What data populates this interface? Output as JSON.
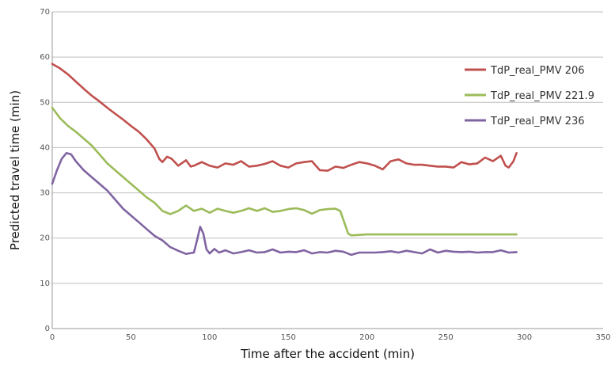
{
  "chart_data": {
    "type": "line",
    "xlabel": "Time after the accident (min)",
    "ylabel": "Predicted travel time (min)",
    "xlim": [
      0,
      350
    ],
    "ylim": [
      0,
      70
    ],
    "x_ticks": [
      "0",
      "50",
      "100",
      "150",
      "200",
      "250",
      "300",
      "350"
    ],
    "y_ticks": [
      "0",
      "10",
      "20",
      "30",
      "40",
      "50",
      "60",
      "70"
    ],
    "grid": "horizontal",
    "legend_position": "right",
    "series": [
      {
        "name": "TdP_real_PMV 206",
        "color": "#c0504d",
        "points": [
          [
            0,
            58.5
          ],
          [
            5,
            57.5
          ],
          [
            10,
            56.2
          ],
          [
            15,
            54.6
          ],
          [
            20,
            53
          ],
          [
            25,
            51.5
          ],
          [
            30,
            50.2
          ],
          [
            35,
            48.8
          ],
          [
            40,
            47.5
          ],
          [
            45,
            46.2
          ],
          [
            50,
            44.8
          ],
          [
            55,
            43.5
          ],
          [
            60,
            41.8
          ],
          [
            65,
            39.8
          ],
          [
            68,
            37.5
          ],
          [
            70,
            36.8
          ],
          [
            73,
            38
          ],
          [
            76,
            37.5
          ],
          [
            80,
            36
          ],
          [
            85,
            37.2
          ],
          [
            88,
            35.8
          ],
          [
            90,
            36
          ],
          [
            95,
            36.8
          ],
          [
            100,
            36
          ],
          [
            105,
            35.6
          ],
          [
            110,
            36.5
          ],
          [
            115,
            36.2
          ],
          [
            120,
            37
          ],
          [
            125,
            35.8
          ],
          [
            130,
            36
          ],
          [
            135,
            36.4
          ],
          [
            140,
            37
          ],
          [
            145,
            36
          ],
          [
            150,
            35.6
          ],
          [
            155,
            36.5
          ],
          [
            160,
            36.8
          ],
          [
            165,
            37
          ],
          [
            170,
            35
          ],
          [
            175,
            34.9
          ],
          [
            180,
            35.8
          ],
          [
            185,
            35.5
          ],
          [
            190,
            36.2
          ],
          [
            195,
            36.8
          ],
          [
            200,
            36.5
          ],
          [
            205,
            36
          ],
          [
            210,
            35.2
          ],
          [
            215,
            37
          ],
          [
            220,
            37.4
          ],
          [
            225,
            36.5
          ],
          [
            230,
            36.2
          ],
          [
            235,
            36.2
          ],
          [
            240,
            36
          ],
          [
            245,
            35.8
          ],
          [
            250,
            35.8
          ],
          [
            255,
            35.6
          ],
          [
            260,
            36.8
          ],
          [
            265,
            36.3
          ],
          [
            270,
            36.5
          ],
          [
            275,
            37.8
          ],
          [
            280,
            37
          ],
          [
            285,
            38.2
          ],
          [
            288,
            36
          ],
          [
            290,
            35.6
          ],
          [
            293,
            37
          ],
          [
            295,
            38.8
          ]
        ]
      },
      {
        "name": "TdP_real_PMV 221.9",
        "color": "#9bbb59",
        "points": [
          [
            0,
            48.8
          ],
          [
            5,
            46.5
          ],
          [
            10,
            44.8
          ],
          [
            15,
            43.5
          ],
          [
            20,
            42
          ],
          [
            25,
            40.5
          ],
          [
            30,
            38.5
          ],
          [
            35,
            36.5
          ],
          [
            40,
            35
          ],
          [
            45,
            33.5
          ],
          [
            50,
            32
          ],
          [
            55,
            30.5
          ],
          [
            60,
            29
          ],
          [
            65,
            27.8
          ],
          [
            70,
            26
          ],
          [
            75,
            25.3
          ],
          [
            80,
            26
          ],
          [
            85,
            27.2
          ],
          [
            90,
            26
          ],
          [
            95,
            26.5
          ],
          [
            100,
            25.6
          ],
          [
            105,
            26.5
          ],
          [
            110,
            26
          ],
          [
            115,
            25.6
          ],
          [
            120,
            26
          ],
          [
            125,
            26.6
          ],
          [
            130,
            26
          ],
          [
            135,
            26.6
          ],
          [
            140,
            25.8
          ],
          [
            145,
            26
          ],
          [
            150,
            26.4
          ],
          [
            155,
            26.6
          ],
          [
            160,
            26.2
          ],
          [
            165,
            25.4
          ],
          [
            170,
            26.2
          ],
          [
            175,
            26.4
          ],
          [
            180,
            26.5
          ],
          [
            183,
            26
          ],
          [
            186,
            23
          ],
          [
            188,
            21
          ],
          [
            190,
            20.6
          ],
          [
            200,
            20.8
          ],
          [
            210,
            20.8
          ],
          [
            220,
            20.8
          ],
          [
            230,
            20.8
          ],
          [
            240,
            20.8
          ],
          [
            250,
            20.8
          ],
          [
            260,
            20.8
          ],
          [
            270,
            20.8
          ],
          [
            280,
            20.8
          ],
          [
            295,
            20.8
          ]
        ]
      },
      {
        "name": "TdP_real_PMV 236",
        "color": "#8064a2",
        "points": [
          [
            0,
            32
          ],
          [
            3,
            35
          ],
          [
            6,
            37.5
          ],
          [
            9,
            38.8
          ],
          [
            12,
            38.5
          ],
          [
            15,
            37
          ],
          [
            20,
            35
          ],
          [
            25,
            33.5
          ],
          [
            30,
            32
          ],
          [
            35,
            30.5
          ],
          [
            40,
            28.5
          ],
          [
            45,
            26.5
          ],
          [
            50,
            25
          ],
          [
            55,
            23.5
          ],
          [
            60,
            22
          ],
          [
            65,
            20.5
          ],
          [
            70,
            19.5
          ],
          [
            75,
            18
          ],
          [
            80,
            17.2
          ],
          [
            85,
            16.5
          ],
          [
            90,
            16.8
          ],
          [
            92,
            19.5
          ],
          [
            94,
            22.5
          ],
          [
            96,
            21
          ],
          [
            98,
            17.5
          ],
          [
            100,
            16.6
          ],
          [
            103,
            17.6
          ],
          [
            106,
            16.8
          ],
          [
            110,
            17.3
          ],
          [
            115,
            16.6
          ],
          [
            120,
            16.9
          ],
          [
            125,
            17.3
          ],
          [
            130,
            16.8
          ],
          [
            135,
            16.9
          ],
          [
            140,
            17.5
          ],
          [
            145,
            16.8
          ],
          [
            150,
            17
          ],
          [
            155,
            16.9
          ],
          [
            160,
            17.3
          ],
          [
            165,
            16.6
          ],
          [
            170,
            16.9
          ],
          [
            175,
            16.8
          ],
          [
            180,
            17.2
          ],
          [
            185,
            17
          ],
          [
            190,
            16.3
          ],
          [
            195,
            16.8
          ],
          [
            200,
            16.8
          ],
          [
            205,
            16.8
          ],
          [
            210,
            16.9
          ],
          [
            215,
            17.1
          ],
          [
            220,
            16.8
          ],
          [
            225,
            17.2
          ],
          [
            230,
            16.9
          ],
          [
            235,
            16.6
          ],
          [
            240,
            17.5
          ],
          [
            245,
            16.8
          ],
          [
            250,
            17.2
          ],
          [
            255,
            17
          ],
          [
            260,
            16.9
          ],
          [
            265,
            17
          ],
          [
            270,
            16.8
          ],
          [
            275,
            16.9
          ],
          [
            280,
            16.9
          ],
          [
            285,
            17.3
          ],
          [
            290,
            16.8
          ],
          [
            295,
            16.9
          ]
        ]
      }
    ]
  }
}
